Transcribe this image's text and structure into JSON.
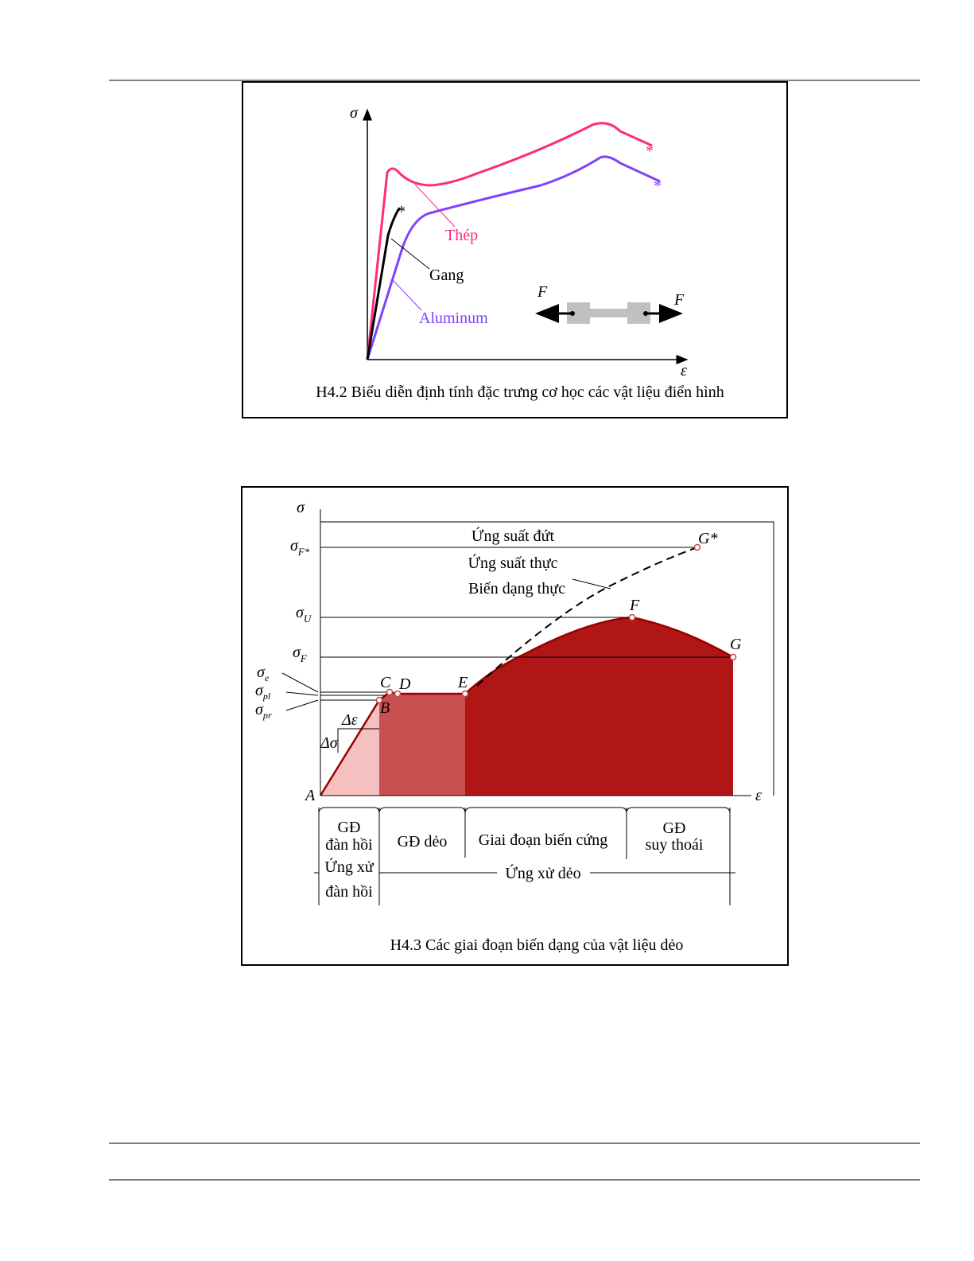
{
  "figure1": {
    "axis_y": "σ",
    "axis_x": "ε",
    "steel": "Thép",
    "cast_iron": "Gang",
    "aluminum": "Aluminum",
    "force_left": "F",
    "force_right": "F",
    "break_marks": [
      "*",
      "*",
      "*"
    ],
    "caption": "H4.2 Biểu diễn định tính đặc trưng cơ học các vật liệu điển hình"
  },
  "figure2": {
    "axis_y": "σ",
    "axis_x": "ε",
    "stress_levels": [
      {
        "symbol": "σ",
        "subscript": "F*"
      },
      {
        "symbol": "σ",
        "subscript": "U"
      },
      {
        "symbol": "σ",
        "subscript": "F"
      },
      {
        "symbol": "σ",
        "subscript": "e"
      },
      {
        "symbol": "σ",
        "subscript": "pl"
      },
      {
        "symbol": "σ",
        "subscript": "pr"
      }
    ],
    "delta_eps": "Δε",
    "delta_sigma": "Δσ",
    "points": [
      "A",
      "B",
      "C",
      "D",
      "E",
      "F",
      "G",
      "G*"
    ],
    "rupture_stress": "Ứng suất đứt",
    "true_stress": "Ứng suất thực",
    "true_strain": "Biến dạng thực",
    "stages": [
      [
        "GĐ",
        "đàn hồi"
      ],
      [
        "GĐ dẻo"
      ],
      [
        "Giai đoạn biến cứng"
      ],
      [
        "GĐ",
        "suy thoái"
      ]
    ],
    "behaviors": [
      [
        "Ứng xử",
        "đàn hồi"
      ],
      [
        "Ứng xử dẻo"
      ]
    ],
    "caption": "H4.3 Các giai đoạn biến dạng của vật liệu dẻo"
  }
}
